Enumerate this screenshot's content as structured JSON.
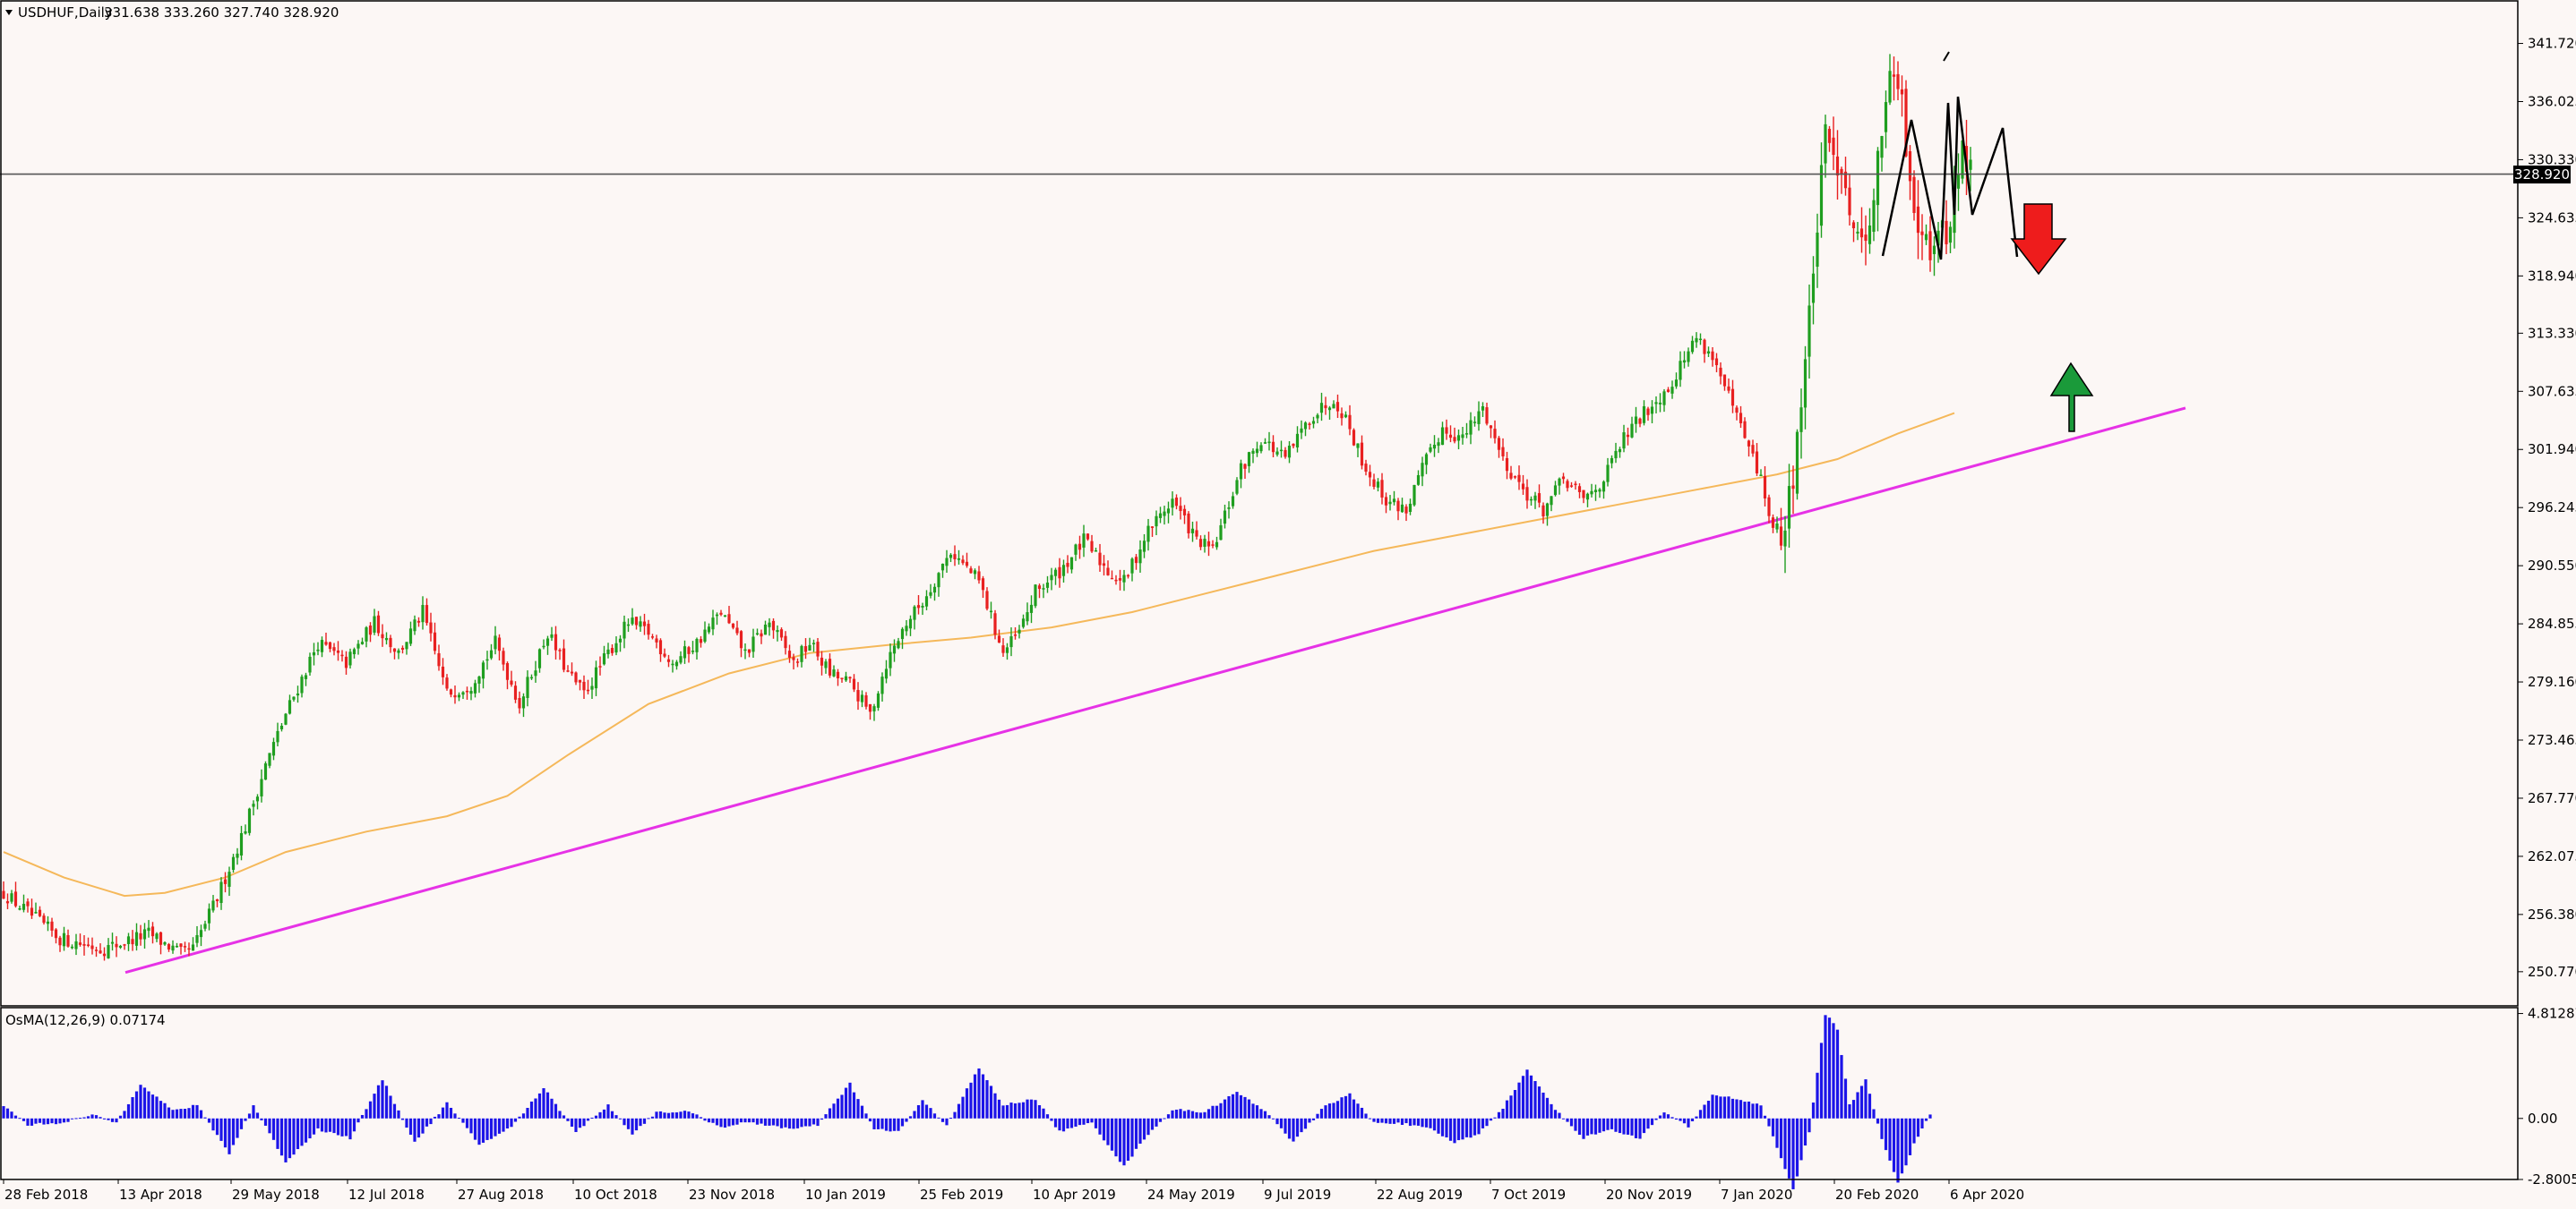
{
  "chart_data": [
    {
      "type": "candlestick",
      "symbol_label": "USDHUF,Daily",
      "ohlc_label": "331.638 333.260 327.740 328.920",
      "current_price_label": "328.920",
      "current_price": 328.92,
      "ylim": [
        247.6,
        345.8
      ],
      "y_ticks": [
        "341.720",
        "336.025",
        "330.330",
        "324.635",
        "318.940",
        "313.330",
        "307.635",
        "301.940",
        "296.245",
        "290.550",
        "284.855",
        "279.160",
        "273.465",
        "267.770",
        "262.075",
        "256.380",
        "250.770"
      ],
      "x_ticks": [
        "28 Feb 2018",
        "13 Apr 2018",
        "29 May 2018",
        "12 Jul 2018",
        "27 Aug 2018",
        "10 Oct 2018",
        "23 Nov 2018",
        "10 Jan 2019",
        "25 Feb 2019",
        "10 Apr 2019",
        "24 May 2019",
        "9 Jul 2019",
        "22 Aug 2019",
        "7 Oct 2019",
        "20 Nov 2019",
        "7 Jan 2020",
        "20 Feb 2020",
        "6 Apr 2020"
      ],
      "close_path": [
        [
          0,
          258.5
        ],
        [
          14,
          254
        ],
        [
          25,
          253
        ],
        [
          36,
          254.5
        ],
        [
          44,
          252.5
        ],
        [
          47,
          253
        ],
        [
          53,
          258
        ],
        [
          60,
          265
        ],
        [
          65,
          271
        ],
        [
          70,
          276
        ],
        [
          78,
          283
        ],
        [
          85,
          281
        ],
        [
          92,
          285
        ],
        [
          98,
          282
        ],
        [
          104,
          286
        ],
        [
          110,
          278
        ],
        [
          116,
          279
        ],
        [
          122,
          283
        ],
        [
          128,
          277
        ],
        [
          135,
          284
        ],
        [
          140,
          280
        ],
        [
          144,
          278
        ],
        [
          150,
          282
        ],
        [
          155,
          285
        ],
        [
          160,
          284
        ],
        [
          166,
          281
        ],
        [
          172,
          283
        ],
        [
          178,
          286
        ],
        [
          184,
          282
        ],
        [
          190,
          285
        ],
        [
          196,
          281
        ],
        [
          200,
          283
        ],
        [
          205,
          280
        ],
        [
          210,
          279
        ],
        [
          215,
          276
        ],
        [
          219,
          281
        ],
        [
          224,
          285
        ],
        [
          228,
          287
        ],
        [
          235,
          292
        ],
        [
          242,
          289
        ],
        [
          248,
          282
        ],
        [
          252,
          284
        ],
        [
          256,
          288
        ],
        [
          262,
          290
        ],
        [
          268,
          293
        ],
        [
          274,
          290
        ],
        [
          278,
          289
        ],
        [
          284,
          294
        ],
        [
          290,
          297
        ],
        [
          296,
          293
        ],
        [
          300,
          292
        ],
        [
          307,
          300
        ],
        [
          312,
          303
        ],
        [
          318,
          301
        ],
        [
          324,
          305
        ],
        [
          330,
          307
        ],
        [
          333,
          305
        ],
        [
          338,
          300
        ],
        [
          343,
          297
        ],
        [
          348,
          296
        ],
        [
          352,
          300
        ],
        [
          357,
          304
        ],
        [
          362,
          303
        ],
        [
          367,
          306
        ],
        [
          372,
          301
        ],
        [
          377,
          298
        ],
        [
          382,
          296
        ],
        [
          387,
          299
        ],
        [
          392,
          297
        ],
        [
          397,
          299
        ],
        [
          402,
          303
        ],
        [
          408,
          306
        ],
        [
          413,
          308
        ],
        [
          420,
          313
        ],
        [
          424,
          311
        ],
        [
          428,
          307
        ],
        [
          432,
          303
        ],
        [
          436,
          299
        ],
        [
          439,
          294
        ],
        [
          442,
          294
        ],
        [
          444,
          300
        ],
        [
          447,
          310
        ],
        [
          449,
          320
        ],
        [
          452,
          332
        ],
        [
          456,
          330
        ],
        [
          460,
          322
        ],
        [
          464,
          326
        ],
        [
          467,
          337
        ],
        [
          470,
          338
        ],
        [
          474,
          326
        ],
        [
          478,
          322
        ],
        [
          482,
          323
        ],
        [
          486,
          331
        ],
        [
          488,
          329
        ]
      ],
      "ma_path": [
        [
          0,
          262.5
        ],
        [
          15,
          260
        ],
        [
          30,
          258.2
        ],
        [
          40,
          258.5
        ],
        [
          55,
          260
        ],
        [
          70,
          262.5
        ],
        [
          90,
          264.5
        ],
        [
          110,
          266
        ],
        [
          125,
          268
        ],
        [
          140,
          272
        ],
        [
          160,
          277
        ],
        [
          180,
          280
        ],
        [
          200,
          282
        ],
        [
          220,
          282.8
        ],
        [
          240,
          283.5
        ],
        [
          260,
          284.5
        ],
        [
          280,
          286
        ],
        [
          300,
          288
        ],
        [
          320,
          290
        ],
        [
          340,
          292
        ],
        [
          360,
          293.5
        ],
        [
          380,
          295
        ],
        [
          400,
          296.5
        ],
        [
          420,
          298
        ],
        [
          440,
          299.5
        ],
        [
          455,
          301
        ],
        [
          470,
          303.5
        ],
        [
          484,
          305.5
        ]
      ],
      "bar_count": 489,
      "legend": "top-left"
    },
    {
      "type": "histogram",
      "indicator_label": "OsMA(12,26,9) 0.07174",
      "ylim": [
        -2.8,
        5.0
      ],
      "y_ticks": [
        "4.81287",
        "0.00",
        "-2.80053"
      ],
      "wave": [
        [
          0,
          0.6
        ],
        [
          6,
          -0.3
        ],
        [
          14,
          -0.2
        ],
        [
          22,
          0.15
        ],
        [
          28,
          -0.2
        ],
        [
          34,
          1.6
        ],
        [
          42,
          0.35
        ],
        [
          48,
          0.6
        ],
        [
          56,
          -1.6
        ],
        [
          62,
          0.6
        ],
        [
          70,
          -2.0
        ],
        [
          78,
          -0.5
        ],
        [
          86,
          -0.9
        ],
        [
          94,
          1.8
        ],
        [
          102,
          -1.1
        ],
        [
          110,
          0.7
        ],
        [
          118,
          -1.2
        ],
        [
          126,
          -0.4
        ],
        [
          134,
          1.4
        ],
        [
          142,
          -0.6
        ],
        [
          150,
          0.6
        ],
        [
          156,
          -0.7
        ],
        [
          162,
          0.3
        ],
        [
          170,
          0.3
        ],
        [
          178,
          -0.4
        ],
        [
          184,
          -0.2
        ],
        [
          190,
          -0.3
        ],
        [
          196,
          -0.5
        ],
        [
          202,
          -0.3
        ],
        [
          210,
          1.6
        ],
        [
          216,
          -0.5
        ],
        [
          222,
          -0.6
        ],
        [
          228,
          0.8
        ],
        [
          234,
          -0.3
        ],
        [
          242,
          2.3
        ],
        [
          248,
          0.6
        ],
        [
          256,
          0.9
        ],
        [
          262,
          -0.6
        ],
        [
          270,
          -0.2
        ],
        [
          278,
          -2.2
        ],
        [
          284,
          -0.7
        ],
        [
          290,
          0.4
        ],
        [
          298,
          0.3
        ],
        [
          306,
          1.2
        ],
        [
          314,
          0.2
        ],
        [
          320,
          -1.1
        ],
        [
          328,
          0.6
        ],
        [
          334,
          1.1
        ],
        [
          340,
          -0.2
        ],
        [
          346,
          -0.2
        ],
        [
          354,
          -0.5
        ],
        [
          360,
          -1.1
        ],
        [
          366,
          -0.7
        ],
        [
          372,
          0.5
        ],
        [
          378,
          2.2
        ],
        [
          386,
          0.2
        ],
        [
          392,
          -0.9
        ],
        [
          398,
          -0.5
        ],
        [
          406,
          -0.9
        ],
        [
          412,
          0.3
        ],
        [
          418,
          -0.4
        ],
        [
          424,
          1.1
        ],
        [
          430,
          0.9
        ],
        [
          436,
          0.6
        ],
        [
          440,
          -1.3
        ],
        [
          444,
          -3.3
        ],
        [
          448,
          -0.6
        ],
        [
          452,
          4.8
        ],
        [
          455,
          4.1
        ],
        [
          458,
          0.6
        ],
        [
          462,
          1.8
        ],
        [
          466,
          -0.9
        ],
        [
          470,
          -3.0
        ],
        [
          474,
          -1.2
        ],
        [
          478,
          0.2
        ]
      ],
      "bar_count": 479
    }
  ],
  "annotations": {
    "trendline_color": "#e632e6",
    "ma_color": "#f5b85a",
    "bull_color": "#1f9e1f",
    "bear_color": "#e82020",
    "hist_color": "#1c14e8",
    "up_arrow_color": "#1a9a3a",
    "down_arrow_color": "#ee1c1c"
  }
}
